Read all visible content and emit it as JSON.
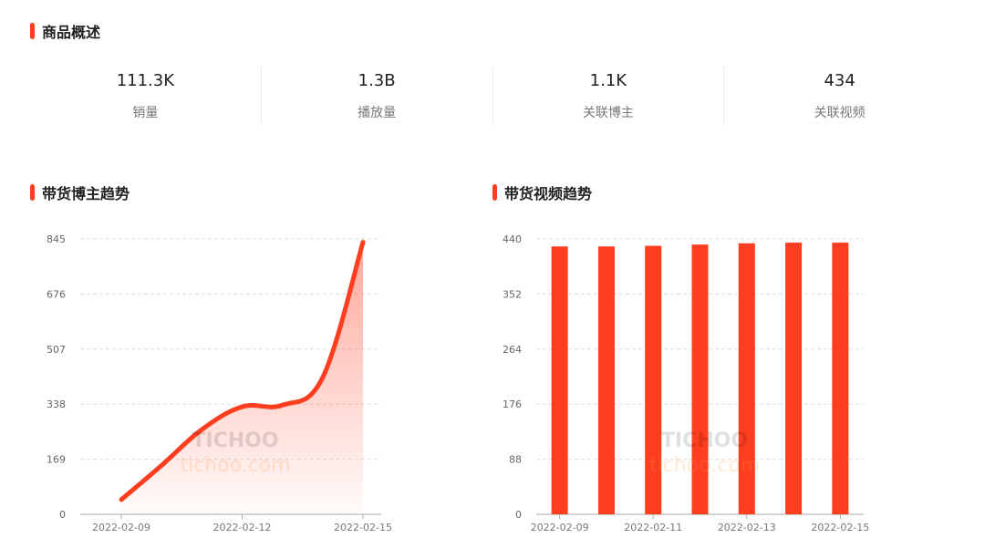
{
  "overview": {
    "title": "商品概述",
    "stats": [
      {
        "value": "111.3K",
        "label": "销量"
      },
      {
        "value": "1.3B",
        "label": "播放量"
      },
      {
        "value": "1.1K",
        "label": "关联博主"
      },
      {
        "value": "434",
        "label": "关联视频"
      }
    ]
  },
  "watermark": {
    "brand": "TICHOO",
    "domain": "tichoo.com"
  },
  "accent": "#ff3d1f",
  "chart_data": [
    {
      "type": "area",
      "title": "带货博主趋势",
      "x": [
        "2022-02-09",
        "2022-02-10",
        "2022-02-11",
        "2022-02-12",
        "2022-02-13",
        "2022-02-14",
        "2022-02-15"
      ],
      "values": [
        45,
        150,
        260,
        330,
        335,
        420,
        835
      ],
      "xticks": [
        "2022-02-09",
        "2022-02-12",
        "2022-02-15"
      ],
      "yticks": [
        "0",
        "169",
        "338",
        "507",
        "676",
        "845"
      ],
      "ylim": [
        0,
        845
      ],
      "grid": true,
      "color": "#ff3d1f"
    },
    {
      "type": "bar",
      "title": "带货视频趋势",
      "x": [
        "2022-02-09",
        "2022-02-10",
        "2022-02-11",
        "2022-02-12",
        "2022-02-13",
        "2022-02-14",
        "2022-02-15"
      ],
      "values": [
        428,
        428,
        429,
        431,
        433,
        434,
        434
      ],
      "xticks": [
        "2022-02-09",
        "2022-02-11",
        "2022-02-13",
        "2022-02-15"
      ],
      "yticks": [
        "0",
        "88",
        "176",
        "264",
        "352",
        "440"
      ],
      "ylim": [
        0,
        440
      ],
      "grid": true,
      "color": "#ff3d1f"
    }
  ]
}
